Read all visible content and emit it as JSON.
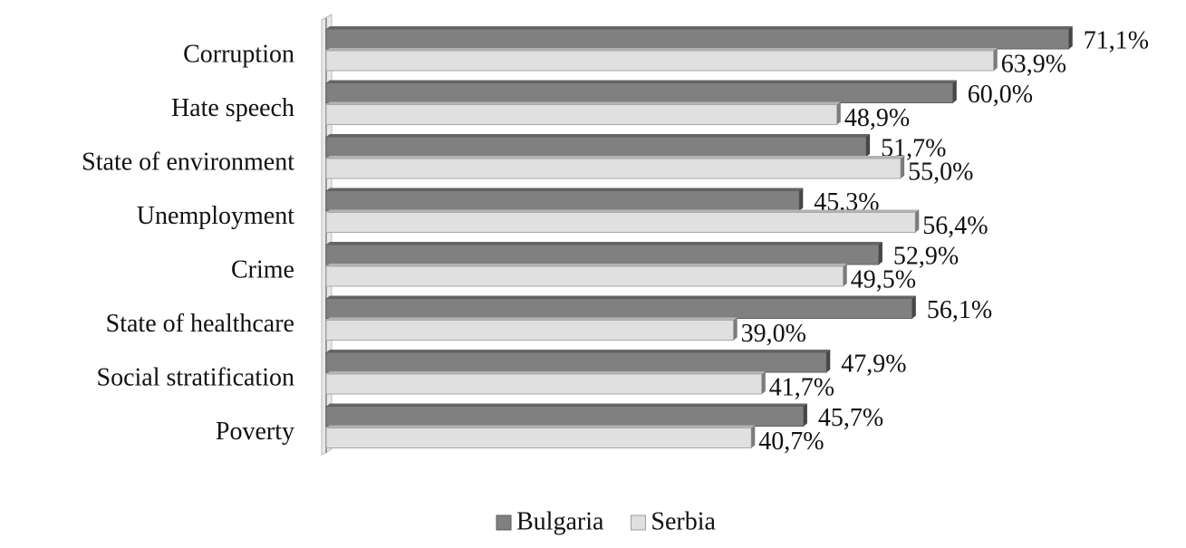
{
  "chart_data": {
    "type": "bar",
    "orientation": "horizontal",
    "categories": [
      "Corruption",
      "Hate speech",
      "State of environment",
      "Unemployment",
      "Crime",
      "State of healthcare",
      "Social stratification",
      "Poverty"
    ],
    "series": [
      {
        "name": "Bulgaria",
        "color": "#808080",
        "values": [
          71.1,
          60.0,
          51.7,
          45.3,
          52.9,
          56.1,
          47.9,
          45.7
        ],
        "value_labels": [
          "71,1%",
          "60,0%",
          "51,7%",
          "45,3%",
          "52,9%",
          "56,1%",
          "47,9%",
          "45,7%"
        ]
      },
      {
        "name": "Serbia",
        "color": "#e0e0e0",
        "values": [
          63.9,
          48.9,
          55.0,
          56.4,
          49.5,
          39.0,
          41.7,
          40.7
        ],
        "value_labels": [
          "63,9%",
          "48,9%",
          "55,0%",
          "56,4%",
          "49,5%",
          "39,0%",
          "41,7%",
          "40,7%"
        ]
      }
    ],
    "legend": "bottom"
  }
}
